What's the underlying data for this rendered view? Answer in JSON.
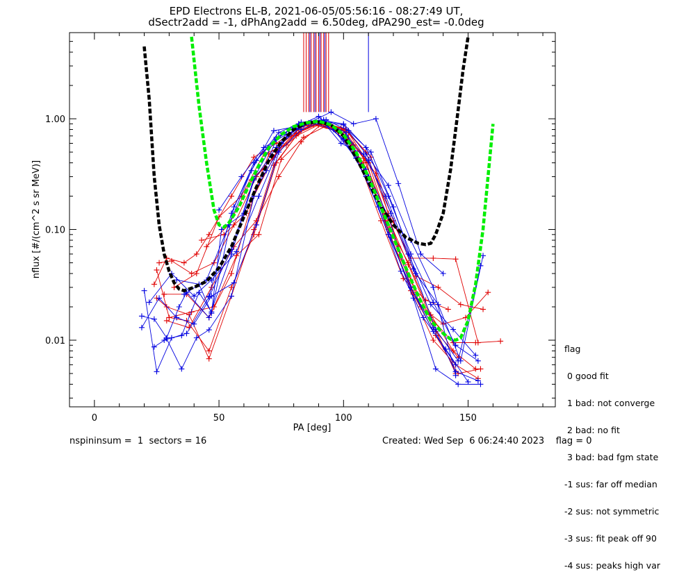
{
  "chart_data": {
    "type": "line",
    "title": "EPD Electrons EL-B, 2021-06-05/05:56:16 - 08:27:49 UT,",
    "subtitle": "dSectr2add = -1, dPhAng2add = 6.50deg, dPA290_est=  -0.0deg",
    "xlabel": "PA [deg]",
    "ylabel": "nflux [#/(cm^2 s sr MeV)]",
    "xlim": [
      -10,
      185
    ],
    "ylim": [
      0.0025,
      6
    ],
    "y_scale": "log",
    "x_ticks": [
      0,
      50,
      100,
      150
    ],
    "y_tick_labels": [
      {
        "v": 0.01,
        "label": "0.01"
      },
      {
        "v": 0.1,
        "label": "0.10"
      },
      {
        "v": 1.0,
        "label": "1.00"
      }
    ],
    "colors": {
      "red": "#e00000",
      "blue": "#0000e0",
      "green": "#00ee00",
      "black": "#000000"
    },
    "vertical_markers": {
      "red": [
        84,
        85,
        86,
        87,
        88,
        89,
        90,
        91,
        92,
        93,
        94
      ],
      "blue": [
        86.5,
        88.5,
        90.5,
        92.5,
        110
      ],
      "y_range": [
        1.15,
        7
      ]
    },
    "fit_curves": [
      {
        "color": "black",
        "x": [
          20,
          22,
          24,
          26,
          28,
          30,
          32,
          34,
          36,
          40,
          45,
          50,
          55,
          60,
          65,
          70,
          75,
          80,
          85,
          90,
          95,
          100,
          105,
          110,
          115,
          120,
          125,
          130,
          133,
          135,
          137,
          140,
          143,
          146,
          148,
          150
        ],
        "y": [
          4.5,
          1.5,
          0.3,
          0.11,
          0.06,
          0.042,
          0.033,
          0.029,
          0.028,
          0.03,
          0.034,
          0.045,
          0.07,
          0.13,
          0.24,
          0.42,
          0.62,
          0.8,
          0.92,
          0.93,
          0.88,
          0.7,
          0.45,
          0.27,
          0.16,
          0.11,
          0.085,
          0.075,
          0.073,
          0.075,
          0.09,
          0.14,
          0.35,
          1.2,
          2.8,
          5.5
        ]
      },
      {
        "color": "green",
        "x": [
          39,
          42,
          45,
          48,
          50,
          52,
          54,
          58,
          62,
          66,
          70,
          75,
          80,
          85,
          90,
          95,
          100,
          105,
          110,
          115,
          120,
          125,
          130,
          135,
          140,
          143,
          145,
          147,
          150,
          153,
          156,
          158,
          160
        ],
        "y": [
          5.5,
          1.3,
          0.4,
          0.15,
          0.11,
          0.105,
          0.115,
          0.16,
          0.25,
          0.38,
          0.55,
          0.72,
          0.85,
          0.92,
          0.95,
          0.88,
          0.72,
          0.5,
          0.3,
          0.16,
          0.085,
          0.045,
          0.025,
          0.015,
          0.0115,
          0.0102,
          0.01,
          0.0105,
          0.015,
          0.032,
          0.1,
          0.3,
          0.9
        ]
      }
    ],
    "series": [
      {
        "color": "red",
        "x": [
          24,
          29,
          36,
          41,
          46,
          55,
          64,
          73,
          82,
          91,
          100,
          109,
          118,
          127,
          136,
          145
        ],
        "y": [
          0.032,
          0.055,
          0.05,
          0.06,
          0.09,
          0.2,
          0.45,
          0.6,
          0.82,
          0.95,
          0.8,
          0.42,
          0.09,
          0.035,
          0.014,
          0.005
        ]
      },
      {
        "color": "red",
        "x": [
          25,
          30,
          37,
          46,
          55,
          64,
          73,
          82,
          91,
          100,
          109,
          118,
          127,
          136,
          145,
          154
        ],
        "y": [
          0.043,
          0.016,
          0.015,
          0.008,
          0.03,
          0.09,
          0.4,
          0.75,
          0.92,
          0.78,
          0.35,
          0.1,
          0.028,
          0.01,
          0.006,
          0.0045
        ]
      },
      {
        "color": "red",
        "x": [
          26,
          31,
          39,
          48,
          56,
          65,
          74,
          83,
          92,
          101,
          110,
          119,
          128,
          137,
          146,
          155
        ],
        "y": [
          0.05,
          0.052,
          0.04,
          0.05,
          0.11,
          0.3,
          0.52,
          0.85,
          0.9,
          0.7,
          0.3,
          0.085,
          0.026,
          0.011,
          0.005,
          0.0055
        ]
      },
      {
        "color": "red",
        "x": [
          25,
          29,
          38,
          46,
          55,
          64,
          72,
          81,
          90,
          99,
          108,
          117,
          126,
          135,
          144,
          153
        ],
        "y": [
          0.024,
          0.02,
          0.017,
          0.0068,
          0.025,
          0.1,
          0.38,
          0.7,
          0.88,
          0.74,
          0.4,
          0.12,
          0.05,
          0.017,
          0.008,
          0.0055
        ]
      },
      {
        "color": "red",
        "x": [
          28,
          37,
          46,
          55,
          64,
          73,
          82,
          91,
          100,
          109,
          118,
          127,
          136,
          145,
          154,
          163
        ],
        "y": [
          0.026,
          0.026,
          0.016,
          0.04,
          0.2,
          0.5,
          0.8,
          0.91,
          0.82,
          0.5,
          0.14,
          0.055,
          0.055,
          0.054,
          0.0095,
          0.0098
        ]
      },
      {
        "color": "red",
        "x": [
          30,
          39,
          48,
          57,
          66,
          75,
          84,
          93,
          102,
          111,
          120,
          129,
          138,
          147,
          156
        ],
        "y": [
          0.016,
          0.018,
          0.02,
          0.058,
          0.09,
          0.43,
          0.68,
          0.86,
          0.75,
          0.45,
          0.12,
          0.038,
          0.03,
          0.021,
          0.019
        ]
      },
      {
        "color": "red",
        "x": [
          32,
          41,
          50,
          59,
          68,
          77,
          86,
          95,
          104,
          113,
          122,
          131,
          140,
          149,
          158
        ],
        "y": [
          0.03,
          0.04,
          0.13,
          0.2,
          0.48,
          0.58,
          0.87,
          0.88,
          0.58,
          0.32,
          0.07,
          0.02,
          0.014,
          0.016,
          0.027
        ]
      },
      {
        "color": "red",
        "x": [
          29,
          38,
          47,
          56,
          65,
          74,
          83,
          92,
          101,
          110,
          119,
          128,
          137,
          146
        ],
        "y": [
          0.015,
          0.013,
          0.03,
          0.07,
          0.12,
          0.3,
          0.62,
          0.93,
          0.8,
          0.4,
          0.1,
          0.027,
          0.012,
          0.007
        ]
      },
      {
        "color": "red",
        "x": [
          45,
          54,
          63,
          72,
          81,
          90,
          99,
          108,
          117,
          126,
          135,
          144,
          153
        ],
        "y": [
          0.07,
          0.11,
          0.28,
          0.45,
          0.74,
          0.9,
          0.82,
          0.44,
          0.14,
          0.048,
          0.016,
          0.0095,
          0.0095
        ]
      },
      {
        "color": "red",
        "x": [
          43,
          52,
          61,
          70,
          79,
          88,
          97,
          106,
          115,
          124,
          133,
          142
        ],
        "y": [
          0.08,
          0.09,
          0.14,
          0.48,
          0.7,
          0.88,
          0.78,
          0.42,
          0.12,
          0.036,
          0.023,
          0.019
        ]
      },
      {
        "color": "blue",
        "x": [
          19,
          24,
          29,
          34,
          37,
          46,
          55,
          64,
          73,
          82,
          91,
          100,
          109,
          118,
          127,
          136,
          145
        ],
        "y": [
          0.0165,
          0.0155,
          0.0105,
          0.02,
          0.027,
          0.016,
          0.06,
          0.28,
          0.55,
          0.85,
          0.95,
          0.66,
          0.35,
          0.13,
          0.03,
          0.012,
          0.006
        ]
      },
      {
        "color": "blue",
        "x": [
          24,
          29,
          35,
          41,
          46,
          55,
          64,
          73,
          82,
          91,
          100,
          109,
          118,
          127,
          136,
          145,
          154
        ],
        "y": [
          0.0087,
          0.0103,
          0.0055,
          0.0105,
          0.0124,
          0.025,
          0.2,
          0.65,
          0.9,
          0.96,
          0.65,
          0.3,
          0.09,
          0.03,
          0.013,
          0.0052,
          0.0043
        ]
      },
      {
        "color": "blue",
        "x": [
          20,
          25,
          31,
          35,
          42,
          47,
          56,
          65,
          74,
          83,
          92,
          101,
          110,
          119,
          128,
          137,
          146,
          155
        ],
        "y": [
          0.028,
          0.0052,
          0.0105,
          0.011,
          0.027,
          0.018,
          0.16,
          0.42,
          0.75,
          0.93,
          0.98,
          0.7,
          0.42,
          0.14,
          0.044,
          0.0125,
          0.0065,
          0.047
        ]
      },
      {
        "color": "blue",
        "x": [
          19,
          26,
          33,
          40,
          47,
          56,
          65,
          74,
          83,
          92,
          101,
          110,
          119,
          128,
          137,
          146,
          155
        ],
        "y": [
          0.013,
          0.024,
          0.016,
          0.014,
          0.025,
          0.033,
          0.11,
          0.5,
          0.8,
          0.95,
          0.75,
          0.3,
          0.085,
          0.024,
          0.0055,
          0.004,
          0.004
        ]
      },
      {
        "color": "blue",
        "x": [
          22,
          31,
          40,
          47,
          57,
          66,
          75,
          84,
          93,
          102,
          111,
          120,
          129,
          138,
          147,
          156
        ],
        "y": [
          0.022,
          0.04,
          0.025,
          0.035,
          0.063,
          0.2,
          0.6,
          0.88,
          0.98,
          0.78,
          0.5,
          0.16,
          0.04,
          0.021,
          0.0065,
          0.058
        ]
      },
      {
        "color": "blue",
        "x": [
          28,
          37,
          46,
          55,
          64,
          73,
          82,
          91,
          100,
          109,
          118,
          127,
          136,
          145,
          154
        ],
        "y": [
          0.01,
          0.0115,
          0.0245,
          0.066,
          0.29,
          0.68,
          0.88,
          0.97,
          0.9,
          0.55,
          0.2,
          0.06,
          0.022,
          0.009,
          0.0065
        ]
      },
      {
        "color": "blue",
        "x": [
          33,
          42,
          47,
          51,
          60,
          69,
          78,
          87,
          96,
          105,
          114,
          123,
          132,
          141,
          150
        ],
        "y": [
          0.035,
          0.032,
          0.0175,
          0.1,
          0.14,
          0.34,
          0.73,
          0.93,
          0.8,
          0.44,
          0.16,
          0.042,
          0.016,
          0.0083,
          0.0042
        ]
      },
      {
        "color": "blue",
        "x": [
          36,
          45,
          54,
          63,
          72,
          81,
          90,
          99,
          108,
          117,
          126,
          135,
          144,
          153
        ],
        "y": [
          0.026,
          0.035,
          0.11,
          0.34,
          0.78,
          0.85,
          1.05,
          0.6,
          0.48,
          0.2,
          0.06,
          0.021,
          0.0125,
          0.0073
        ]
      },
      {
        "color": "blue",
        "x": [
          46,
          55,
          64,
          73,
          82,
          91,
          100,
          109,
          118,
          127,
          136,
          145
        ],
        "y": [
          0.025,
          0.14,
          0.4,
          0.66,
          0.9,
          0.95,
          0.88,
          0.48,
          0.25,
          0.08,
          0.03,
          0.0048
        ]
      },
      {
        "color": "blue",
        "x": [
          50,
          59,
          68,
          77,
          86,
          95,
          104,
          113,
          122,
          131,
          140
        ],
        "y": [
          0.15,
          0.3,
          0.55,
          0.72,
          0.92,
          1.15,
          0.9,
          1.0,
          0.26,
          0.06,
          0.04
        ]
      }
    ]
  },
  "footer": {
    "left": "nspininsum =  1  sectors = 16",
    "right": "Created: Wed Sep  6 06:24:40 2023    flag = 0"
  },
  "legend": {
    "title": "flag",
    "items": [
      " 0 good fit",
      " 1 bad: not converge",
      " 2 bad: no fit",
      " 3 bad: bad fgm state",
      "-1 sus: far off median",
      "-2 sus: not symmetric",
      "-3 sus: fit peak off 90",
      "-4 sus: peaks high var"
    ]
  }
}
